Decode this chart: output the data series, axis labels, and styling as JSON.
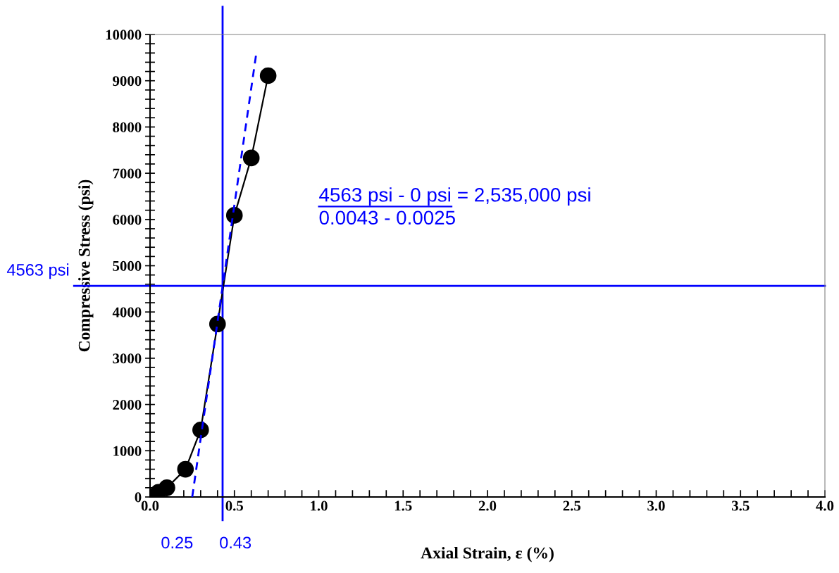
{
  "chart_data": {
    "type": "line",
    "xlabel": "Axial Strain, ε (%)",
    "ylabel": "Compressive Stress (psi)",
    "marker": "circle",
    "line_style": "solid",
    "grid": false,
    "series": [
      {
        "color": "#000000",
        "x": [
          0,
          0.05,
          0.1,
          0.21,
          0.3,
          0.4,
          0.5,
          0.6,
          0.7
        ],
        "values": [
          0,
          100,
          200,
          600,
          1450,
          3740,
          6090,
          7330,
          9110
        ]
      },
      {
        "color": "#0000ff",
        "marker": "none",
        "line_style": "dashed",
        "x": [
          0.25,
          0.63
        ],
        "values": [
          0,
          9600
        ]
      }
    ],
    "ref_lines": [
      {
        "axis": "y",
        "value": 4563,
        "label": "4563 psi",
        "color": "#0000ff"
      },
      {
        "axis": "x",
        "value": 0.43,
        "label": "0.43",
        "color": "#0000ff"
      }
    ],
    "annotations": [
      "0.25",
      "4563 psi - 0 psi",
      " = 2,535,000 psi",
      "0.0043 - 0.0025"
    ],
    "xlim": [
      0,
      4
    ],
    "ylim": [
      0,
      10000
    ],
    "xticks": [
      {
        "value": 0,
        "label": "0.0"
      },
      {
        "value": 0.1,
        "label": null
      },
      {
        "value": 0.2,
        "label": null
      },
      {
        "value": 0.3,
        "label": null
      },
      {
        "value": 0.4,
        "label": null
      },
      {
        "value": 0.5,
        "label": "0.5"
      },
      {
        "value": 0.6,
        "label": null
      },
      {
        "value": 0.7,
        "label": null
      },
      {
        "value": 0.8,
        "label": null
      },
      {
        "value": 0.9,
        "label": null
      },
      {
        "value": 1,
        "label": "1.0"
      },
      {
        "value": 1.1,
        "label": null
      },
      {
        "value": 1.2,
        "label": null
      },
      {
        "value": 1.3,
        "label": null
      },
      {
        "value": 1.4,
        "label": null
      },
      {
        "value": 1.5,
        "label": "1.5"
      },
      {
        "value": 1.6,
        "label": null
      },
      {
        "value": 1.7,
        "label": null
      },
      {
        "value": 1.8,
        "label": null
      },
      {
        "value": 1.9,
        "label": null
      },
      {
        "value": 2,
        "label": "2.0"
      },
      {
        "value": 2.1,
        "label": null
      },
      {
        "value": 2.2,
        "label": null
      },
      {
        "value": 2.3,
        "label": null
      },
      {
        "value": 2.4,
        "label": null
      },
      {
        "value": 2.5,
        "label": "2.5"
      },
      {
        "value": 2.6,
        "label": null
      },
      {
        "value": 2.7,
        "label": null
      },
      {
        "value": 2.8,
        "label": null
      },
      {
        "value": 2.9,
        "label": null
      },
      {
        "value": 3,
        "label": "3.0"
      },
      {
        "value": 3.1,
        "label": null
      },
      {
        "value": 3.2,
        "label": null
      },
      {
        "value": 3.3,
        "label": null
      },
      {
        "value": 3.4,
        "label": null
      },
      {
        "value": 3.5,
        "label": "3.5"
      },
      {
        "value": 3.6,
        "label": null
      },
      {
        "value": 3.7,
        "label": null
      },
      {
        "value": 3.8,
        "label": null
      },
      {
        "value": 3.9,
        "label": null
      },
      {
        "value": 4,
        "label": "4.0"
      }
    ],
    "yticks": [
      0,
      {
        "value": 200,
        "label": null
      },
      {
        "value": 400,
        "label": null
      },
      {
        "value": 600,
        "label": null
      },
      {
        "value": 800,
        "label": null
      },
      1000,
      {
        "value": 1200,
        "label": null
      },
      {
        "value": 1400,
        "label": null
      },
      {
        "value": 1600,
        "label": null
      },
      {
        "value": 1800,
        "label": null
      },
      2000,
      {
        "value": 2200,
        "label": null
      },
      {
        "value": 2400,
        "label": null
      },
      {
        "value": 2600,
        "label": null
      },
      {
        "value": 2800,
        "label": null
      },
      3000,
      {
        "value": 3200,
        "label": null
      },
      {
        "value": 3400,
        "label": null
      },
      {
        "value": 3600,
        "label": null
      },
      {
        "value": 3800,
        "label": null
      },
      4000,
      {
        "value": 4200,
        "label": null
      },
      {
        "value": 4400,
        "label": null
      },
      {
        "value": 4600,
        "label": null
      },
      {
        "value": 4800,
        "label": null
      },
      5000,
      {
        "value": 5200,
        "label": null
      },
      {
        "value": 5400,
        "label": null
      },
      {
        "value": 5600,
        "label": null
      },
      {
        "value": 5800,
        "label": null
      },
      6000,
      {
        "value": 6200,
        "label": null
      },
      {
        "value": 6400,
        "label": null
      },
      {
        "value": 6600,
        "label": null
      },
      {
        "value": 6800,
        "label": null
      },
      7000,
      {
        "value": 7200,
        "label": null
      },
      {
        "value": 7400,
        "label": null
      },
      {
        "value": 7600,
        "label": null
      },
      {
        "value": 7800,
        "label": null
      },
      8000,
      {
        "value": 8200,
        "label": null
      },
      {
        "value": 8400,
        "label": null
      },
      {
        "value": 8600,
        "label": null
      },
      {
        "value": 8800,
        "label": null
      },
      9000,
      {
        "value": 9200,
        "label": null
      },
      {
        "value": 9400,
        "label": null
      },
      {
        "value": 9600,
        "label": null
      },
      {
        "value": 9800,
        "label": null
      },
      10000
    ]
  }
}
